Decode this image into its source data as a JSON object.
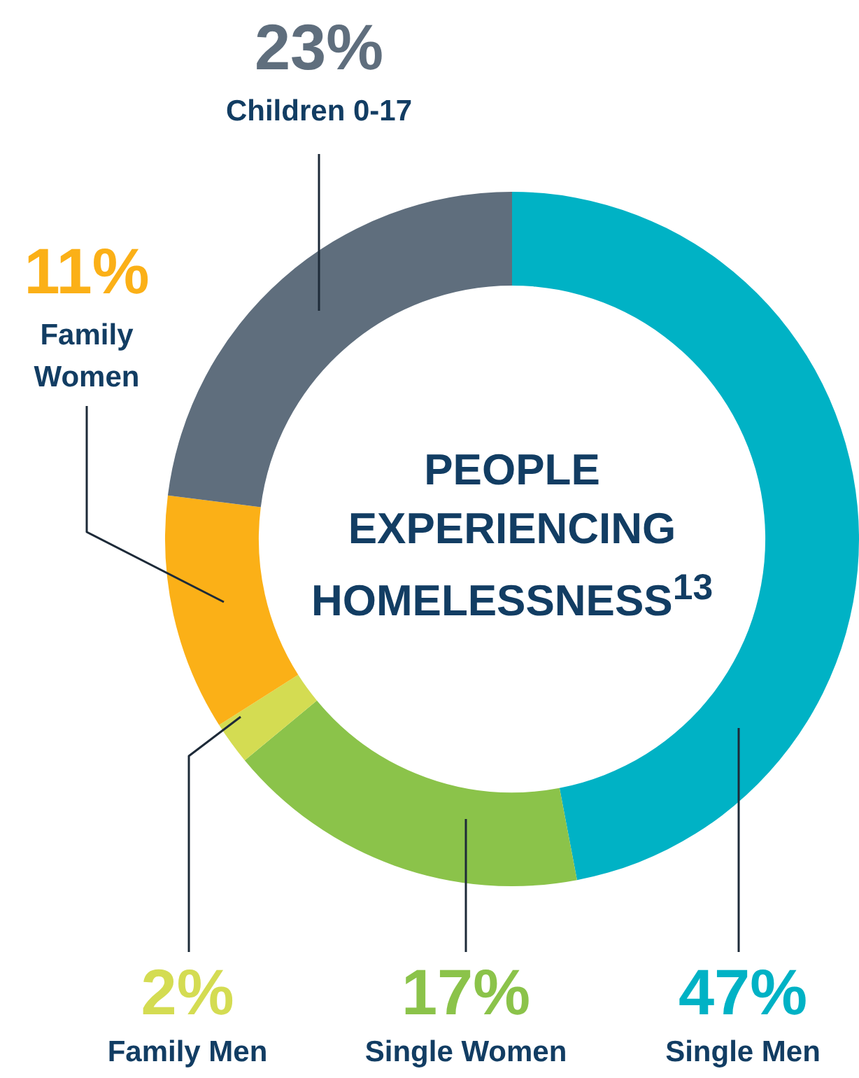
{
  "chart_data": {
    "type": "donut",
    "title": "PEOPLE EXPERIENCING HOMELESSNESS$^{13}$",
    "categories": [
      "Single Men",
      "Single Women",
      "Family Men",
      "Family Women",
      "Children 0-17"
    ],
    "values": [
      47,
      17,
      2,
      11,
      23
    ],
    "value_labels": [
      "47%",
      "17%",
      "2%",
      "11%",
      "23%"
    ],
    "colors": [
      "#00b2c5",
      "#8bc34a",
      "#d4dc52",
      "#fbb017",
      "#5f6e7d"
    ],
    "legend": false
  }
}
